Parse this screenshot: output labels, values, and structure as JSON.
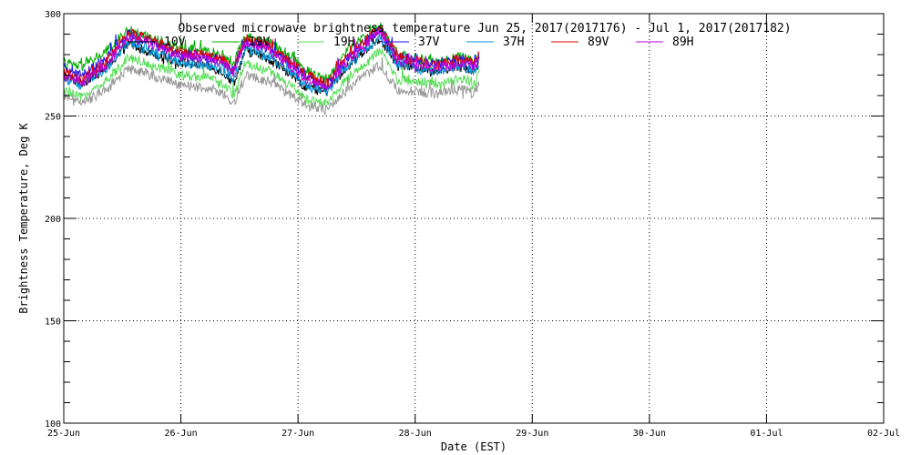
{
  "chart_data": {
    "type": "line",
    "title": "Observed microwave brightness temperature Jun 25, 2017(2017176) - Jul  1, 2017(2017182)",
    "xlabel": "Date (EST)",
    "ylabel": "Brightness Temperature, Deg K",
    "x_ticks": [
      "25-Jun",
      "26-Jun",
      "27-Jun",
      "28-Jun",
      "29-Jun",
      "30-Jun",
      "01-Jul",
      "02-Jul"
    ],
    "xlim_days": [
      0,
      7
    ],
    "ylim": [
      100,
      300
    ],
    "y_ticks": [
      100,
      150,
      200,
      250,
      300
    ],
    "grid": true,
    "legend_position": "top",
    "profile_x": [
      0,
      0.15,
      0.35,
      0.55,
      0.75,
      1.0,
      1.2,
      1.35,
      1.45,
      1.55,
      1.75,
      1.95,
      2.05,
      2.15,
      2.25,
      2.4,
      2.55,
      2.7,
      2.85,
      3.0,
      3.2,
      3.4,
      3.5,
      3.55
    ],
    "series": [
      {
        "name": "10V",
        "color": "#000000",
        "values": [
          270,
          266,
          273,
          285,
          281,
          276,
          275,
          272,
          266,
          282,
          278,
          270,
          265,
          263,
          262,
          273,
          281,
          288,
          275,
          274,
          272,
          275,
          272,
          276
        ]
      },
      {
        "name": "19V",
        "color": "#00aa00",
        "values": [
          276,
          274,
          281,
          292,
          288,
          283,
          282,
          280,
          276,
          289,
          286,
          279,
          273,
          270,
          268,
          281,
          288,
          294,
          280,
          278,
          276,
          279,
          276,
          281
        ]
      },
      {
        "name": "19H",
        "color": "#55dd55",
        "values": [
          262,
          259,
          266,
          279,
          275,
          270,
          269,
          266,
          260,
          276,
          272,
          264,
          259,
          257,
          256,
          267,
          274,
          282,
          268,
          267,
          265,
          268,
          265,
          270
        ]
      },
      {
        "name": "37V",
        "color": "#1111ff",
        "values": [
          273,
          270,
          277,
          290,
          286,
          280,
          279,
          277,
          272,
          287,
          283,
          275,
          270,
          267,
          265,
          277,
          285,
          292,
          279,
          277,
          275,
          278,
          275,
          279
        ]
      },
      {
        "name": "37H",
        "color": "#0099dd",
        "values": [
          268,
          265,
          272,
          286,
          282,
          276,
          275,
          273,
          268,
          283,
          279,
          271,
          266,
          263,
          262,
          273,
          281,
          289,
          275,
          273,
          272,
          275,
          272,
          276
        ]
      },
      {
        "name": "89V",
        "color": "#dd0000",
        "values": [
          271,
          268,
          276,
          291,
          287,
          281,
          280,
          278,
          273,
          288,
          284,
          276,
          271,
          268,
          266,
          278,
          286,
          293,
          279,
          277,
          275,
          278,
          276,
          280
        ]
      },
      {
        "name": "89H",
        "color": "#bb00dd",
        "values": [
          269,
          266,
          274,
          289,
          285,
          279,
          278,
          276,
          271,
          286,
          282,
          274,
          269,
          266,
          264,
          276,
          284,
          291,
          277,
          275,
          273,
          276,
          274,
          278
        ]
      },
      {
        "name": "",
        "color": "#999999",
        "values": [
          259,
          256,
          262,
          273,
          270,
          265,
          264,
          262,
          256,
          270,
          267,
          260,
          256,
          254,
          253,
          262,
          269,
          275,
          263,
          262,
          261,
          263,
          261,
          265
        ]
      }
    ]
  }
}
